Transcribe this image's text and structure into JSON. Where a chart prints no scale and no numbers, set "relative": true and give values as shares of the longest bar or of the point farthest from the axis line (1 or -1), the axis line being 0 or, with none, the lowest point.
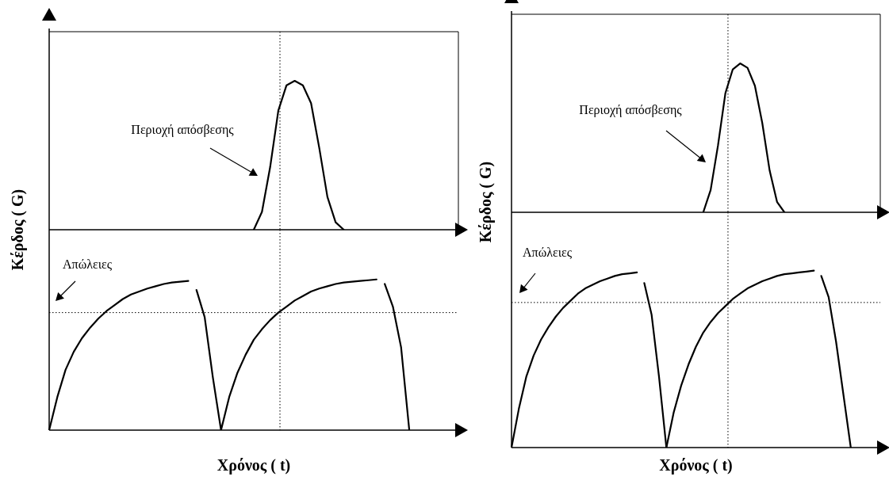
{
  "chart_data": [
    {
      "type": "line",
      "ylabel": "Κέρδος ( G)",
      "relative": true,
      "tick_labels": false,
      "categories": [
        null,
        null,
        null,
        null,
        null,
        null,
        null,
        null,
        null,
        null,
        null,
        null,
        null,
        null,
        null,
        null,
        null,
        null,
        null,
        null,
        null,
        null,
        null,
        null,
        null,
        null,
        null,
        null,
        null,
        null,
        null,
        null,
        null,
        null,
        null,
        null,
        null,
        null,
        null,
        null,
        null,
        null,
        null,
        null,
        null,
        null,
        null,
        null,
        null,
        null,
        null
      ],
      "series": [
        {
          "color": "#000000",
          "values": [
            null,
            null,
            null,
            null,
            null,
            null,
            null,
            null,
            null,
            null,
            null,
            null,
            null,
            null,
            null,
            null,
            null,
            null,
            null,
            null,
            null,
            null,
            null,
            null,
            null,
            0,
            0.12,
            0.42,
            0.8,
            0.97,
            1,
            0.97,
            0.85,
            0.55,
            0.22,
            0.05,
            0,
            null,
            null,
            null,
            null,
            null,
            null,
            null,
            null,
            null,
            null,
            null,
            null,
            null,
            null
          ]
        }
      ],
      "annotations": [
        "Περιοχή απόσβεσης"
      ]
    },
    {
      "type": "line",
      "xlabel": "Χρόνος ( t)",
      "relative": true,
      "tick_labels": false,
      "categories": [
        null,
        null,
        null,
        null,
        null,
        null,
        null,
        null,
        null,
        null,
        null,
        null,
        null,
        null,
        null,
        null,
        null,
        null,
        null,
        null,
        null,
        null,
        null,
        null,
        null,
        null,
        null,
        null,
        null,
        null,
        null,
        null,
        null,
        null,
        null,
        null,
        null,
        null,
        null,
        null,
        null,
        null,
        null,
        null,
        null,
        null,
        null,
        null,
        null,
        null,
        null
      ],
      "series": [
        {
          "color": "#000000",
          "values": [
            0,
            0.22,
            0.4,
            0.52,
            0.61,
            0.68,
            0.74,
            0.79,
            0.83,
            0.87,
            0.9,
            0.92,
            0.94,
            0.955,
            0.97,
            0.98,
            0.985,
            0.99,
            null,
            null,
            null,
            null,
            null,
            null,
            null,
            null,
            null,
            null,
            null,
            null,
            null,
            null,
            null,
            null,
            null,
            null,
            null,
            null,
            null,
            null,
            null,
            null,
            null,
            null,
            null,
            null,
            null,
            null,
            null,
            null,
            null
          ]
        },
        {
          "color": "#000000",
          "values": [
            null,
            null,
            null,
            null,
            null,
            null,
            null,
            null,
            null,
            null,
            null,
            null,
            null,
            null,
            null,
            null,
            null,
            null,
            0.93,
            0.75,
            0.35,
            0,
            null,
            null,
            null,
            null,
            null,
            null,
            null,
            null,
            null,
            null,
            null,
            null,
            null,
            null,
            null,
            null,
            null,
            null,
            null,
            null,
            null,
            null,
            null,
            null,
            null,
            null,
            null,
            null,
            null
          ]
        },
        {
          "color": "#000000",
          "values": [
            null,
            null,
            null,
            null,
            null,
            null,
            null,
            null,
            null,
            null,
            null,
            null,
            null,
            null,
            null,
            null,
            null,
            null,
            null,
            null,
            null,
            0,
            0.22,
            0.38,
            0.5,
            0.6,
            0.67,
            0.73,
            0.78,
            0.82,
            0.86,
            0.89,
            0.92,
            0.94,
            0.955,
            0.97,
            0.98,
            0.985,
            0.99,
            0.995,
            1,
            null,
            null,
            null,
            null,
            null,
            null,
            null,
            null,
            null,
            null
          ]
        },
        {
          "color": "#000000",
          "values": [
            null,
            null,
            null,
            null,
            null,
            null,
            null,
            null,
            null,
            null,
            null,
            null,
            null,
            null,
            null,
            null,
            null,
            null,
            null,
            null,
            null,
            null,
            null,
            null,
            null,
            null,
            null,
            null,
            null,
            null,
            null,
            null,
            null,
            null,
            null,
            null,
            null,
            null,
            null,
            null,
            null,
            0.97,
            0.82,
            0.55,
            0,
            null,
            null,
            null,
            null,
            null,
            null
          ]
        }
      ],
      "ref_lines": [
        {
          "axis": "y",
          "value": 0.78,
          "line_style": "dotted"
        }
      ],
      "annotations": [
        "Απώλειες"
      ]
    },
    {
      "type": "line",
      "ylabel": "Κέρδος ( G)",
      "relative": true,
      "tick_labels": false,
      "categories": [
        null,
        null,
        null,
        null,
        null,
        null,
        null,
        null,
        null,
        null,
        null,
        null,
        null,
        null,
        null,
        null,
        null,
        null,
        null,
        null,
        null,
        null,
        null,
        null,
        null,
        null,
        null,
        null,
        null,
        null,
        null,
        null,
        null,
        null,
        null,
        null,
        null,
        null,
        null,
        null,
        null,
        null,
        null,
        null,
        null,
        null,
        null,
        null,
        null,
        null,
        null
      ],
      "series": [
        {
          "color": "#000000",
          "values": [
            null,
            null,
            null,
            null,
            null,
            null,
            null,
            null,
            null,
            null,
            null,
            null,
            null,
            null,
            null,
            null,
            null,
            null,
            null,
            null,
            null,
            null,
            null,
            null,
            null,
            null,
            0,
            0.15,
            0.45,
            0.8,
            0.96,
            1,
            0.97,
            0.85,
            0.6,
            0.28,
            0.07,
            0,
            null,
            null,
            null,
            null,
            null,
            null,
            null,
            null,
            null,
            null,
            null,
            null,
            null
          ]
        }
      ],
      "annotations": [
        "Περιοχή απόσβεσης"
      ]
    },
    {
      "type": "line",
      "xlabel": "Χρόνος ( t)",
      "relative": true,
      "tick_labels": false,
      "categories": [
        null,
        null,
        null,
        null,
        null,
        null,
        null,
        null,
        null,
        null,
        null,
        null,
        null,
        null,
        null,
        null,
        null,
        null,
        null,
        null,
        null,
        null,
        null,
        null,
        null,
        null,
        null,
        null,
        null,
        null,
        null,
        null,
        null,
        null,
        null,
        null,
        null,
        null,
        null,
        null,
        null,
        null,
        null,
        null,
        null,
        null,
        null,
        null,
        null,
        null,
        null
      ],
      "series": [
        {
          "color": "#000000",
          "values": [
            0,
            0.22,
            0.4,
            0.52,
            0.61,
            0.68,
            0.74,
            0.79,
            0.83,
            0.87,
            0.9,
            0.92,
            0.94,
            0.955,
            0.97,
            0.98,
            0.985,
            0.99,
            null,
            null,
            null,
            null,
            null,
            null,
            null,
            null,
            null,
            null,
            null,
            null,
            null,
            null,
            null,
            null,
            null,
            null,
            null,
            null,
            null,
            null,
            null,
            null,
            null,
            null,
            null,
            null,
            null,
            null,
            null,
            null,
            null
          ]
        },
        {
          "color": "#000000",
          "values": [
            null,
            null,
            null,
            null,
            null,
            null,
            null,
            null,
            null,
            null,
            null,
            null,
            null,
            null,
            null,
            null,
            null,
            null,
            0.93,
            0.75,
            0.4,
            0,
            null,
            null,
            null,
            null,
            null,
            null,
            null,
            null,
            null,
            null,
            null,
            null,
            null,
            null,
            null,
            null,
            null,
            null,
            null,
            null,
            null,
            null,
            null,
            null,
            null,
            null,
            null,
            null,
            null
          ]
        },
        {
          "color": "#000000",
          "values": [
            null,
            null,
            null,
            null,
            null,
            null,
            null,
            null,
            null,
            null,
            null,
            null,
            null,
            null,
            null,
            null,
            null,
            null,
            null,
            null,
            null,
            0,
            0.2,
            0.35,
            0.47,
            0.57,
            0.65,
            0.71,
            0.76,
            0.8,
            0.84,
            0.87,
            0.9,
            0.92,
            0.94,
            0.955,
            0.97,
            0.98,
            0.985,
            0.99,
            0.995,
            1,
            null,
            null,
            null,
            null,
            null,
            null,
            null,
            null,
            null
          ]
        },
        {
          "color": "#000000",
          "values": [
            null,
            null,
            null,
            null,
            null,
            null,
            null,
            null,
            null,
            null,
            null,
            null,
            null,
            null,
            null,
            null,
            null,
            null,
            null,
            null,
            null,
            null,
            null,
            null,
            null,
            null,
            null,
            null,
            null,
            null,
            null,
            null,
            null,
            null,
            null,
            null,
            null,
            null,
            null,
            null,
            null,
            null,
            0.97,
            0.85,
            0.6,
            0.3,
            0,
            null,
            null,
            null,
            null
          ]
        }
      ],
      "ref_lines": [
        {
          "axis": "y",
          "value": 0.82,
          "line_style": "dotted"
        }
      ],
      "annotations": [
        "Απώλειες"
      ]
    }
  ]
}
